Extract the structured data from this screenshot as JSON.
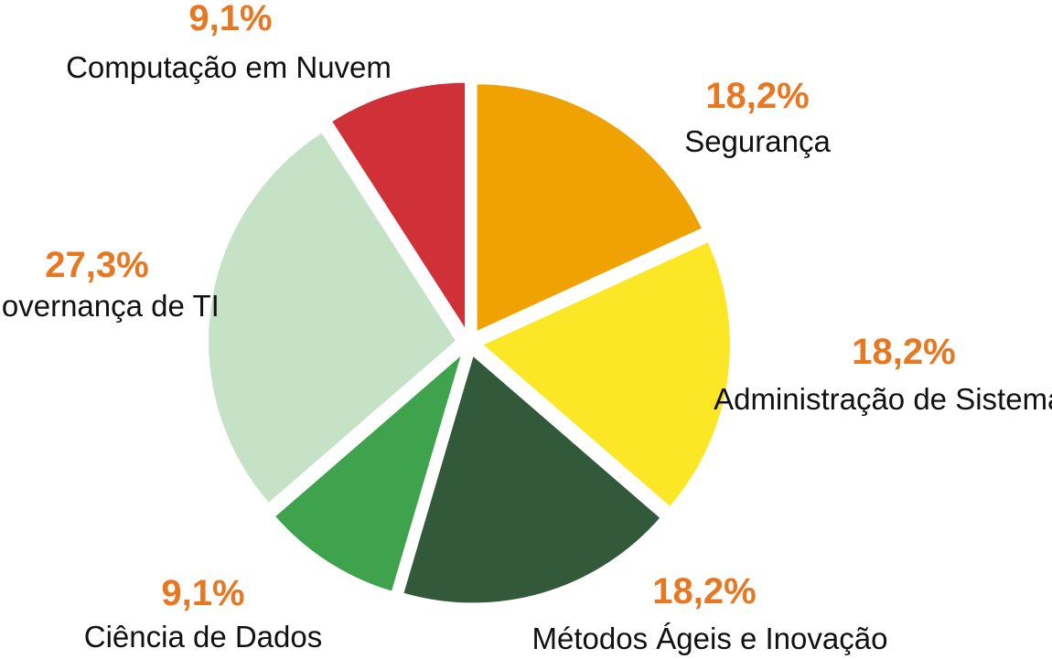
{
  "chart_data": {
    "type": "pie",
    "slices": [
      {
        "label": "Segurança",
        "value": 18.2,
        "value_label": "18,2%",
        "color": "#F0A202"
      },
      {
        "label": "Administração de Sistemas",
        "value": 18.2,
        "value_label": "18,2%",
        "color": "#FCE726"
      },
      {
        "label": "Métodos Ágeis e Inovação",
        "value": 18.2,
        "value_label": "18,2%",
        "color": "#32593A"
      },
      {
        "label": "Ciência de Dados",
        "value": 9.1,
        "value_label": "9,1%",
        "color": "#3FA34D"
      },
      {
        "label": "Governança de TI",
        "value": 27.3,
        "value_label": "27,3%",
        "color": "#C5E2C6"
      },
      {
        "label": "Computação em Nuvem",
        "value": 9.1,
        "value_label": "9,1%",
        "color": "#D03038"
      }
    ],
    "value_label_color": "#E87722",
    "start_angle": "12 o'clock",
    "direction": "clockwise",
    "exploded": true
  }
}
